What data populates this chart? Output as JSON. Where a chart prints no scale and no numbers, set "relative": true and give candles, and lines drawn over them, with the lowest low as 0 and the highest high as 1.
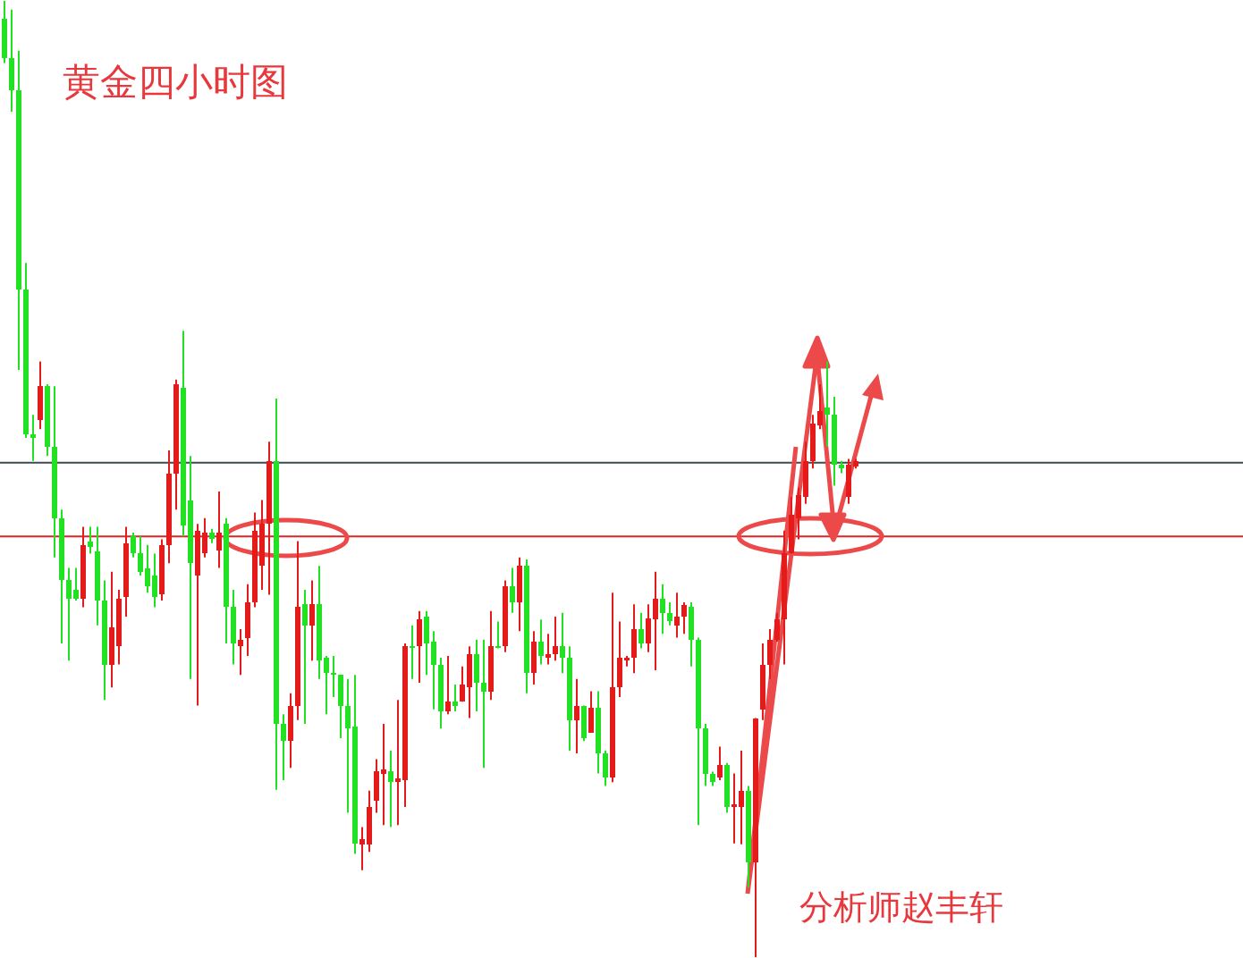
{
  "chart_data": {
    "type": "candlestick",
    "relative": true,
    "title": "黄金四小时图",
    "categories": [
      null,
      null,
      null,
      null,
      null,
      null,
      null,
      null,
      null,
      null,
      null,
      null,
      null,
      null,
      null,
      null,
      null,
      null,
      null,
      null,
      null,
      null,
      null,
      null,
      null,
      null,
      null,
      null,
      null,
      null,
      null,
      null,
      null,
      null,
      null,
      null,
      null,
      null,
      null,
      null,
      null,
      null,
      null,
      null,
      null,
      null,
      null,
      null,
      null,
      null,
      null,
      null,
      null,
      null,
      null,
      null,
      null,
      null,
      null,
      null,
      null,
      null,
      null,
      null,
      null,
      null,
      null,
      null,
      null,
      null,
      null,
      null,
      null,
      null,
      null,
      null,
      null,
      null,
      null,
      null,
      null,
      null,
      null,
      null,
      null,
      null,
      null,
      null,
      null,
      null,
      null,
      null,
      null,
      null,
      null,
      null,
      null,
      null,
      null,
      null,
      null,
      null,
      null,
      null,
      null,
      null,
      null,
      null,
      null,
      null,
      null,
      null,
      null,
      null,
      null,
      null,
      null,
      null,
      null,
      null
    ],
    "ohlc": [
      [
        0.981,
        1,
        0.935,
        0.94
      ],
      [
        0.94,
        0.991,
        0.884,
        0.907
      ],
      [
        0.907,
        0.948,
        0.614,
        0.698
      ],
      [
        0.698,
        0.726,
        0.543,
        0.547
      ],
      [
        0.547,
        0.567,
        0.519,
        0.543
      ],
      [
        0.562,
        0.623,
        0.552,
        0.597
      ],
      [
        0.597,
        0.599,
        0.524,
        0.534
      ],
      [
        0.534,
        0.597,
        0.418,
        0.459
      ],
      [
        0.459,
        0.468,
        0.328,
        0.394
      ],
      [
        0.394,
        0.407,
        0.31,
        0.375
      ],
      [
        0.384,
        0.407,
        0.373,
        0.375
      ],
      [
        0.375,
        0.45,
        0.366,
        0.431
      ],
      [
        0.435,
        0.45,
        0.422,
        0.429
      ],
      [
        0.424,
        0.45,
        0.347,
        0.373
      ],
      [
        0.373,
        0.394,
        0.269,
        0.306
      ],
      [
        0.306,
        0.403,
        0.282,
        0.345
      ],
      [
        0.325,
        0.384,
        0.306,
        0.375
      ],
      [
        0.377,
        0.45,
        0.356,
        0.433
      ],
      [
        0.44,
        0.444,
        0.418,
        0.422
      ],
      [
        0.422,
        0.44,
        0.399,
        0.403
      ],
      [
        0.407,
        0.431,
        0.381,
        0.388
      ],
      [
        0.399,
        0.422,
        0.366,
        0.377
      ],
      [
        0.379,
        0.437,
        0.373,
        0.431
      ],
      [
        0.431,
        0.53,
        0.412,
        0.506
      ],
      [
        0.506,
        0.604,
        0.468,
        0.599
      ],
      [
        0.595,
        0.655,
        0.44,
        0.451
      ],
      [
        0.478,
        0.524,
        0.291,
        0.412
      ],
      [
        0.399,
        0.453,
        0.263,
        0.446
      ],
      [
        0.422,
        0.459,
        0.418,
        0.444
      ],
      [
        0.444,
        0.448,
        0.433,
        0.437
      ],
      [
        0.425,
        0.487,
        0.407,
        0.444
      ],
      [
        0.453,
        0.459,
        0.328,
        0.366
      ],
      [
        0.366,
        0.384,
        0.306,
        0.328
      ],
      [
        0.325,
        0.343,
        0.295,
        0.332
      ],
      [
        0.334,
        0.39,
        0.315,
        0.371
      ],
      [
        0.371,
        0.465,
        0.366,
        0.446
      ],
      [
        0.409,
        0.478,
        0.384,
        0.453
      ],
      [
        0.453,
        0.539,
        0.379,
        0.519
      ],
      [
        0.519,
        0.584,
        0.175,
        0.244
      ],
      [
        0.244,
        0.254,
        0.185,
        0.226
      ],
      [
        0.226,
        0.276,
        0.198,
        0.263
      ],
      [
        0.263,
        0.435,
        0.248,
        0.366
      ],
      [
        0.369,
        0.384,
        0.244,
        0.347
      ],
      [
        0.347,
        0.394,
        0.31,
        0.369
      ],
      [
        0.369,
        0.409,
        0.291,
        0.31
      ],
      [
        0.313,
        0.315,
        0.254,
        0.297
      ],
      [
        0.297,
        0.315,
        0.272,
        0.295
      ],
      [
        0.295,
        0.295,
        0.229,
        0.263
      ],
      [
        0.263,
        0.291,
        0.151,
        0.239
      ],
      [
        0.241,
        0.295,
        0.108,
        0.119
      ],
      [
        0.118,
        0.136,
        0.091,
        0.123
      ],
      [
        0.118,
        0.174,
        0.11,
        0.157
      ],
      [
        0.164,
        0.207,
        0.151,
        0.194
      ],
      [
        0.192,
        0.244,
        0.138,
        0.196
      ],
      [
        0.194,
        0.216,
        0.136,
        0.183
      ],
      [
        0.183,
        0.269,
        0.138,
        0.187
      ],
      [
        0.185,
        0.328,
        0.157,
        0.325
      ],
      [
        0.325,
        0.347,
        0.291,
        0.323
      ],
      [
        0.325,
        0.362,
        0.287,
        0.353
      ],
      [
        0.356,
        0.362,
        0.295,
        0.328
      ],
      [
        0.33,
        0.341,
        0.259,
        0.306
      ],
      [
        0.306,
        0.313,
        0.239,
        0.257
      ],
      [
        0.257,
        0.315,
        0.254,
        0.267
      ],
      [
        0.267,
        0.285,
        0.257,
        0.263
      ],
      [
        0.267,
        0.304,
        0.267,
        0.285
      ],
      [
        0.282,
        0.325,
        0.25,
        0.317
      ],
      [
        0.317,
        0.332,
        0.257,
        0.287
      ],
      [
        0.287,
        0.332,
        0.198,
        0.278
      ],
      [
        0.278,
        0.362,
        0.269,
        0.325
      ],
      [
        0.325,
        0.351,
        0.323,
        0.323
      ],
      [
        0.325,
        0.394,
        0.319,
        0.388
      ],
      [
        0.388,
        0.407,
        0.36,
        0.371
      ],
      [
        0.371,
        0.418,
        0.341,
        0.409
      ],
      [
        0.409,
        0.416,
        0.276,
        0.297
      ],
      [
        0.297,
        0.341,
        0.285,
        0.33
      ],
      [
        0.33,
        0.353,
        0.306,
        0.315
      ],
      [
        0.313,
        0.338,
        0.306,
        0.317
      ],
      [
        0.317,
        0.356,
        0.31,
        0.325
      ],
      [
        0.325,
        0.36,
        0.297,
        0.313
      ],
      [
        0.313,
        0.325,
        0.216,
        0.248
      ],
      [
        0.248,
        0.291,
        0.213,
        0.263
      ],
      [
        0.263,
        0.263,
        0.226,
        0.229
      ],
      [
        0.235,
        0.278,
        0.235,
        0.261
      ],
      [
        0.261,
        0.278,
        0.192,
        0.213
      ],
      [
        0.213,
        0.216,
        0.179,
        0.188
      ],
      [
        0.188,
        0.381,
        0.183,
        0.282
      ],
      [
        0.282,
        0.351,
        0.272,
        0.313
      ],
      [
        0.31,
        0.315,
        0.304,
        0.313
      ],
      [
        0.313,
        0.369,
        0.297,
        0.343
      ],
      [
        0.343,
        0.36,
        0.323,
        0.328
      ],
      [
        0.328,
        0.369,
        0.319,
        0.354
      ],
      [
        0.353,
        0.403,
        0.3,
        0.375
      ],
      [
        0.375,
        0.39,
        0.338,
        0.36
      ],
      [
        0.36,
        0.371,
        0.347,
        0.351
      ],
      [
        0.347,
        0.381,
        0.334,
        0.356
      ],
      [
        0.356,
        0.371,
        0.338,
        0.368
      ],
      [
        0.366,
        0.371,
        0.304,
        0.332
      ],
      [
        0.332,
        0.334,
        0.138,
        0.239
      ],
      [
        0.239,
        0.244,
        0.179,
        0.192
      ],
      [
        0.192,
        0.194,
        0.179,
        0.183
      ],
      [
        0.188,
        0.22,
        0.185,
        0.201
      ],
      [
        0.201,
        0.203,
        0.151,
        0.157
      ],
      [
        0.157,
        0.192,
        0.119,
        0.16
      ],
      [
        0.157,
        0.216,
        0.118,
        0.174
      ],
      [
        0.174,
        0.179,
        0.073,
        0.099
      ],
      [
        0.099,
        0.25,
        0,
        0.25
      ],
      [
        0.259,
        0.328,
        0.248,
        0.306
      ],
      [
        0.306,
        0.343,
        0.291,
        0.332
      ],
      [
        0.332,
        0.36,
        0.33,
        0.353
      ],
      [
        0.353,
        0.446,
        0.306,
        0.422
      ],
      [
        0.422,
        0.481,
        0.422,
        0.463
      ],
      [
        0.459,
        0.491,
        0.437,
        0.483
      ],
      [
        0.481,
        0.539,
        0.474,
        0.519
      ],
      [
        0.519,
        0.567,
        0.511,
        0.558
      ],
      [
        0.556,
        0.599,
        0.552,
        0.571
      ],
      [
        0.575,
        0.623,
        0.534,
        0.567
      ],
      [
        0.567,
        0.586,
        0.493,
        0.515
      ],
      [
        0.515,
        0.519,
        0.506,
        0.511
      ],
      [
        0.481,
        0.521,
        0.474,
        0.515
      ],
      [
        0.513,
        0.521,
        0.511,
        0.519
      ]
    ],
    "ref_lines": [
      {
        "axis": "y",
        "value": 0.517,
        "color": "#3c4b52"
      },
      {
        "axis": "y",
        "value": 0.44,
        "color": "#e02424"
      }
    ],
    "annotations": [
      "分析师赵丰轩"
    ]
  }
}
